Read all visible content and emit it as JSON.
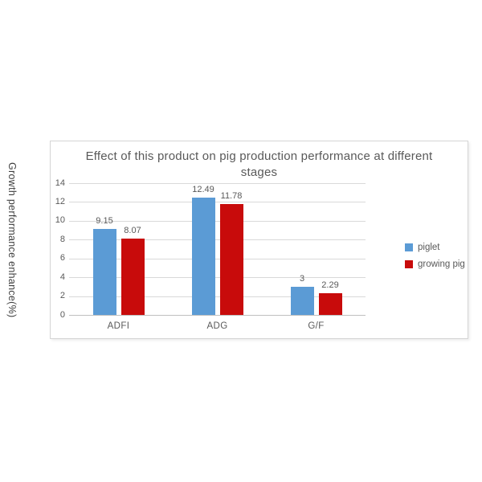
{
  "chart_data": {
    "type": "bar",
    "title": "Effect of this product on pig production performance at different stages",
    "ylabel": "Growth performance enhance(%)",
    "xlabel": "",
    "categories": [
      "ADFI",
      "ADG",
      "G/F"
    ],
    "series": [
      {
        "name": "piglet",
        "color": "#5B9BD5",
        "values": [
          9.15,
          12.49,
          3
        ]
      },
      {
        "name": "growing pig",
        "color": "#C80B0B",
        "values": [
          8.07,
          11.78,
          2.29
        ]
      }
    ],
    "ylim": [
      0,
      14
    ],
    "yticks": [
      0,
      2,
      4,
      6,
      8,
      10,
      12,
      14
    ],
    "grid": true,
    "legend_position": "right",
    "data_labels_shown": true
  },
  "colors": {
    "text": "#595959",
    "gridline": "#D9D9D9",
    "axis_line": "#BFBFBF",
    "chart_border": "#D5D5D5",
    "background": "#FFFFFF"
  }
}
